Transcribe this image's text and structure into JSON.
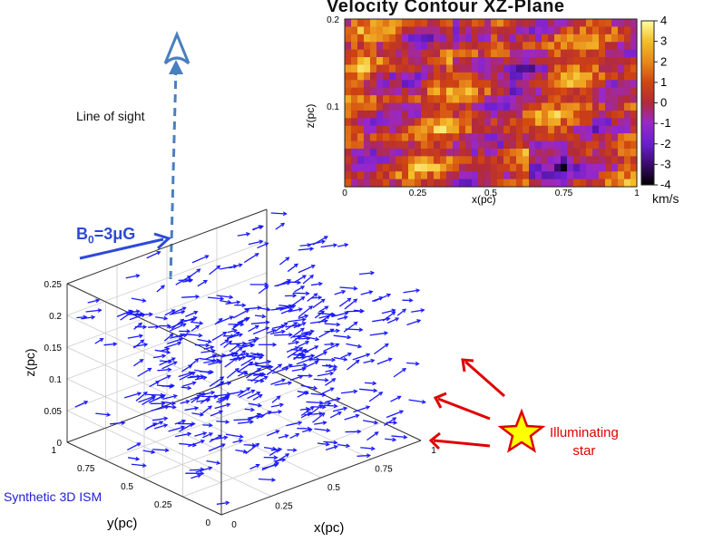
{
  "contour": {
    "title": "Velocity Contour XZ-Plane",
    "x_label": "x(pc)",
    "z_label": "z(pc)",
    "x_ticks": [
      "0",
      "0.25",
      "0.5",
      "0.75",
      "1"
    ],
    "z_ticks": [
      "0.2",
      "0.1"
    ],
    "colorbar_ticks": [
      "4",
      "3",
      "2",
      "1",
      "0",
      "-1",
      "-2",
      "-3",
      "-4"
    ],
    "colorbar_unit": "km/s",
    "value_range": [
      -4,
      4
    ]
  },
  "labels": {
    "line_of_sight": "Line of sight",
    "b_field": "B",
    "b_field_sub": "0",
    "b_field_rest": "=3μG",
    "synthetic_ism": "Synthetic 3D ISM",
    "star_line1": "Illuminating",
    "star_line2": "star"
  },
  "cube": {
    "z_label": "z(pc)",
    "x_label": "x(pc)",
    "y_label": "y(pc)",
    "z_ticks": [
      "0.25",
      "0.2",
      "0.15",
      "0.1",
      "0.05",
      "0"
    ],
    "x_ticks": [
      "0",
      "0.25",
      "0.5",
      "0.75",
      "1"
    ],
    "y_ticks": [
      "1",
      "0.75",
      "0.5",
      "0.25",
      "0"
    ]
  },
  "colors": {
    "vector": "#1a1aff",
    "sight_line": "#4a7fbf",
    "b_field": "#2d4ad8",
    "star_fill": "#ffff00",
    "star_stroke": "#e00000",
    "light_rays": "#e00000"
  },
  "icons": {
    "eye": "eye-icon",
    "star": "star-icon"
  }
}
